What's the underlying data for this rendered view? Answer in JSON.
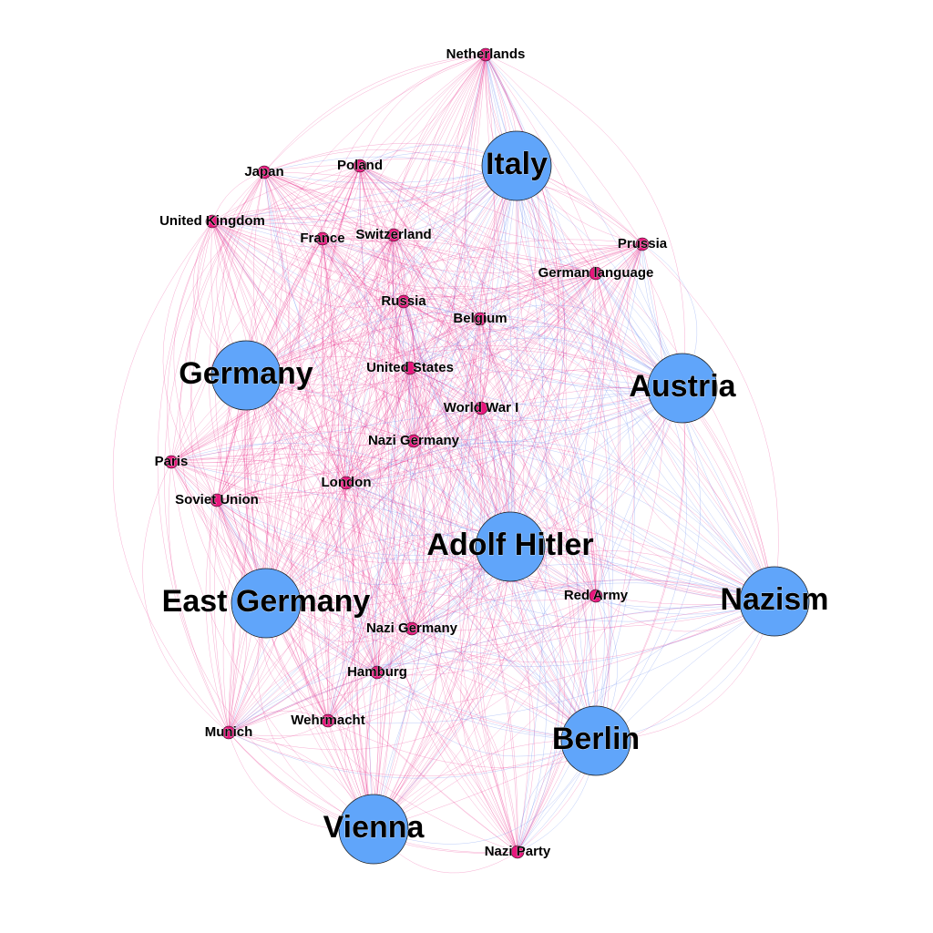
{
  "graph": {
    "colors": {
      "major_node": "#60a5fa",
      "minor_node": "#e8177d",
      "edge_pink": "#e8177d",
      "edge_blue": "#6b8cf0"
    },
    "nodes": [
      {
        "id": "netherlands",
        "label": "Netherlands",
        "size": "minor"
      },
      {
        "id": "italy",
        "label": "Italy",
        "size": "major"
      },
      {
        "id": "japan",
        "label": "Japan",
        "size": "minor"
      },
      {
        "id": "poland",
        "label": "Poland",
        "size": "minor"
      },
      {
        "id": "united-kingdom",
        "label": "United Kingdom",
        "size": "minor"
      },
      {
        "id": "france",
        "label": "France",
        "size": "minor"
      },
      {
        "id": "switzerland",
        "label": "Switzerland",
        "size": "minor"
      },
      {
        "id": "prussia",
        "label": "Prussia",
        "size": "minor"
      },
      {
        "id": "german-language",
        "label": "German language",
        "size": "minor"
      },
      {
        "id": "russia",
        "label": "Russia",
        "size": "minor"
      },
      {
        "id": "belgium",
        "label": "Belgium",
        "size": "minor"
      },
      {
        "id": "germany",
        "label": "Germany",
        "size": "major"
      },
      {
        "id": "united-states",
        "label": "United States",
        "size": "minor"
      },
      {
        "id": "austria",
        "label": "Austria",
        "size": "major"
      },
      {
        "id": "world-war-i",
        "label": "World War I",
        "size": "minor"
      },
      {
        "id": "nazi-germany-1",
        "label": "Nazi Germany",
        "size": "minor"
      },
      {
        "id": "paris",
        "label": "Paris",
        "size": "minor"
      },
      {
        "id": "london",
        "label": "London",
        "size": "minor"
      },
      {
        "id": "soviet-union",
        "label": "Soviet Union",
        "size": "minor"
      },
      {
        "id": "adolf-hitler",
        "label": "Adolf Hitler",
        "size": "major"
      },
      {
        "id": "red-army",
        "label": "Red Army",
        "size": "minor"
      },
      {
        "id": "nazism",
        "label": "Nazism",
        "size": "major"
      },
      {
        "id": "east-germany",
        "label": "East Germany",
        "size": "major"
      },
      {
        "id": "nazi-germany-2",
        "label": "Nazi Germany",
        "size": "minor"
      },
      {
        "id": "hamburg",
        "label": "Hamburg",
        "size": "minor"
      },
      {
        "id": "munich",
        "label": "Munich",
        "size": "minor"
      },
      {
        "id": "wehrmacht",
        "label": "Wehrmacht",
        "size": "minor"
      },
      {
        "id": "berlin",
        "label": "Berlin",
        "size": "major"
      },
      {
        "id": "vienna",
        "label": "Vienna",
        "size": "major"
      },
      {
        "id": "nazi-party",
        "label": "Nazi Party",
        "size": "minor"
      }
    ]
  }
}
